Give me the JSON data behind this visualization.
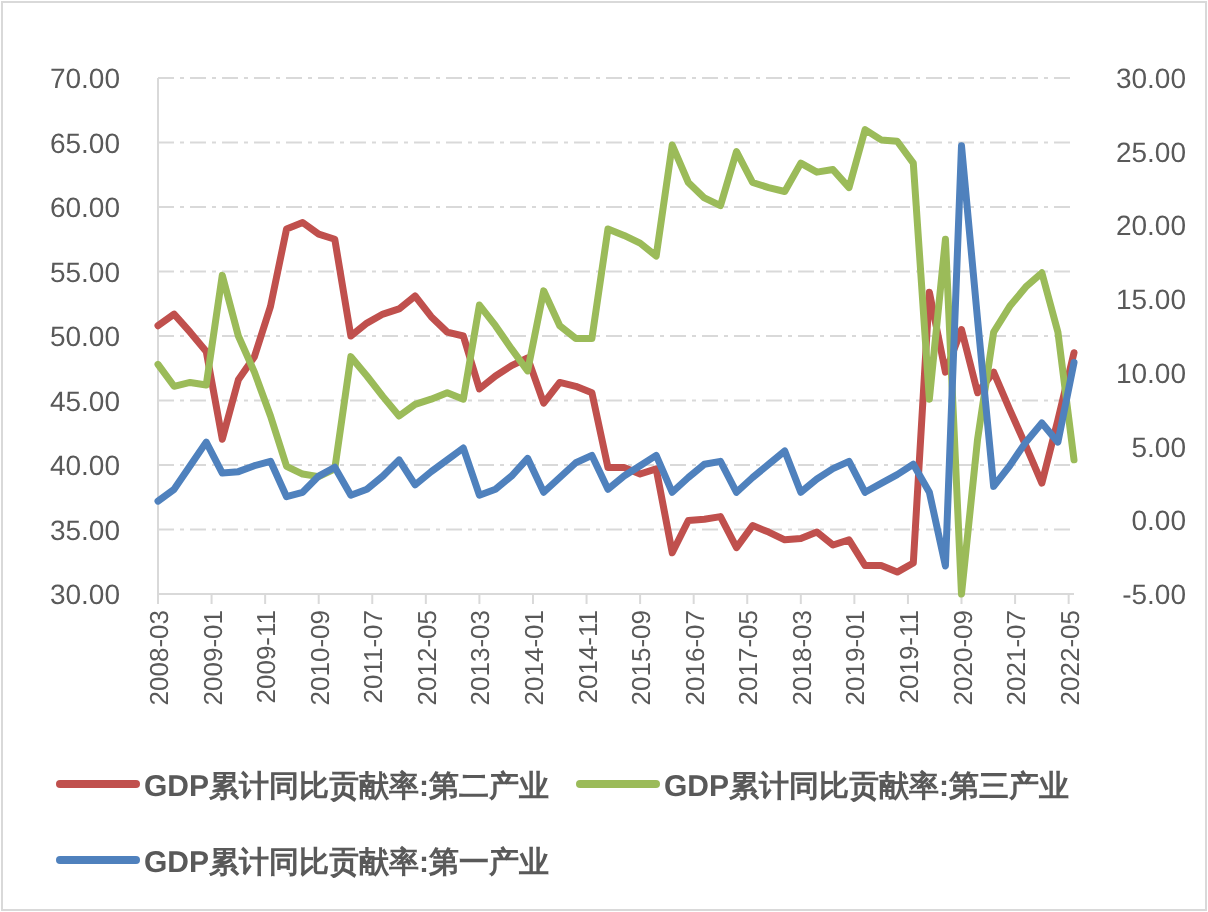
{
  "chart_data": {
    "type": "line",
    "x": [
      "2008-03",
      "2008-06",
      "2008-09",
      "2008-12",
      "2009-03",
      "2009-06",
      "2009-09",
      "2009-12",
      "2010-03",
      "2010-06",
      "2010-09",
      "2010-12",
      "2011-03",
      "2011-06",
      "2011-09",
      "2011-12",
      "2012-03",
      "2012-06",
      "2012-09",
      "2012-12",
      "2013-03",
      "2013-06",
      "2013-09",
      "2013-12",
      "2014-03",
      "2014-06",
      "2014-09",
      "2014-12",
      "2015-03",
      "2015-06",
      "2015-09",
      "2015-12",
      "2016-03",
      "2016-06",
      "2016-09",
      "2016-12",
      "2017-03",
      "2017-06",
      "2017-09",
      "2017-12",
      "2018-03",
      "2018-06",
      "2018-09",
      "2018-12",
      "2019-03",
      "2019-06",
      "2019-09",
      "2019-12",
      "2020-03",
      "2020-06",
      "2020-09",
      "2020-12",
      "2021-03",
      "2021-06",
      "2021-09",
      "2021-12",
      "2022-03",
      "2022-06"
    ],
    "series": [
      {
        "name": "GDP累计同比贡献率:第二产业",
        "color": "#c0504d",
        "axis": "y",
        "values": [
          50.8,
          51.7,
          50.3,
          48.8,
          42.0,
          46.6,
          48.4,
          52.3,
          58.3,
          58.8,
          57.9,
          57.5,
          50.0,
          51.0,
          51.7,
          52.1,
          53.1,
          51.5,
          50.3,
          50.0,
          45.9,
          46.9,
          47.7,
          48.3,
          44.8,
          46.4,
          46.1,
          45.6,
          39.8,
          39.8,
          39.3,
          39.7,
          33.2,
          35.7,
          35.8,
          36.0,
          33.6,
          35.3,
          34.8,
          34.2,
          34.3,
          34.8,
          33.8,
          34.2,
          32.2,
          32.2,
          31.7,
          32.4,
          53.4,
          47.2,
          50.5,
          45.6,
          47.2,
          44.3,
          41.5,
          38.6,
          43.5,
          48.7
        ]
      },
      {
        "name": "GDP累计同比贡献率:第三产业",
        "color": "#9bbb59",
        "axis": "y",
        "values": [
          47.8,
          46.1,
          46.4,
          46.2,
          54.7,
          50.0,
          47.2,
          43.8,
          39.9,
          39.3,
          39.1,
          39.7,
          48.4,
          46.9,
          45.3,
          43.8,
          44.7,
          45.1,
          45.6,
          45.1,
          52.4,
          50.8,
          49.0,
          47.3,
          53.5,
          50.8,
          49.8,
          49.8,
          58.3,
          57.8,
          57.2,
          56.2,
          64.8,
          61.9,
          60.7,
          60.1,
          64.3,
          61.9,
          61.5,
          61.2,
          63.4,
          62.7,
          62.9,
          61.5,
          66.0,
          65.2,
          65.1,
          63.4,
          45.1,
          57.5,
          30.0,
          42.0,
          50.3,
          52.3,
          53.8,
          54.9,
          50.3,
          40.4
        ]
      },
      {
        "name": "GDP累计同比贡献率:第一产业",
        "color": "#4f81bd",
        "axis": "y2",
        "values": [
          1.3,
          2.1,
          3.7,
          5.3,
          3.2,
          3.3,
          3.7,
          4.0,
          1.6,
          1.9,
          3.0,
          3.6,
          1.7,
          2.1,
          3.0,
          4.1,
          2.4,
          3.3,
          4.1,
          4.9,
          1.7,
          2.1,
          3.0,
          4.2,
          1.9,
          2.9,
          3.9,
          4.4,
          2.1,
          3.0,
          3.7,
          4.4,
          1.9,
          2.9,
          3.8,
          4.0,
          1.9,
          2.9,
          3.8,
          4.7,
          1.9,
          2.8,
          3.5,
          4.0,
          1.9,
          2.5,
          3.1,
          3.8,
          1.9,
          -3.1,
          25.4,
          13.6,
          2.3,
          3.7,
          5.3,
          6.6,
          5.3,
          10.7
        ]
      }
    ],
    "xlim": [
      "2008-03",
      "2022-06"
    ],
    "xticks": [
      "2008-03",
      "2009-01",
      "2009-11",
      "2010-09",
      "2011-07",
      "2012-05",
      "2013-03",
      "2014-01",
      "2014-11",
      "2015-09",
      "2016-07",
      "2017-05",
      "2018-03",
      "2019-01",
      "2019-11",
      "2020-09",
      "2021-07",
      "2022-05"
    ],
    "ylim": [
      30,
      70
    ],
    "yticks": [
      {
        "value": 30,
        "label": "30.00"
      },
      {
        "value": 35,
        "label": "35.00"
      },
      {
        "value": 40,
        "label": "40.00"
      },
      {
        "value": 45,
        "label": "45.00"
      },
      {
        "value": 50,
        "label": "50.00"
      },
      {
        "value": 55,
        "label": "55.00"
      },
      {
        "value": 60,
        "label": "60.00"
      },
      {
        "value": 65,
        "label": "65.00"
      },
      {
        "value": 70,
        "label": "70.00"
      }
    ],
    "y2lim": [
      -5,
      30
    ],
    "y2ticks": [
      {
        "value": -5,
        "label": "-5.00"
      },
      {
        "value": 0,
        "label": "0.00"
      },
      {
        "value": 5,
        "label": "5.00"
      },
      {
        "value": 10,
        "label": "10.00"
      },
      {
        "value": 15,
        "label": "15.00"
      },
      {
        "value": 20,
        "label": "20.00"
      },
      {
        "value": 25,
        "label": "25.00"
      },
      {
        "value": 30,
        "label": "30.00"
      }
    ],
    "grid": "y",
    "legend": "bottom",
    "marker": "none",
    "line_style": "solid"
  }
}
